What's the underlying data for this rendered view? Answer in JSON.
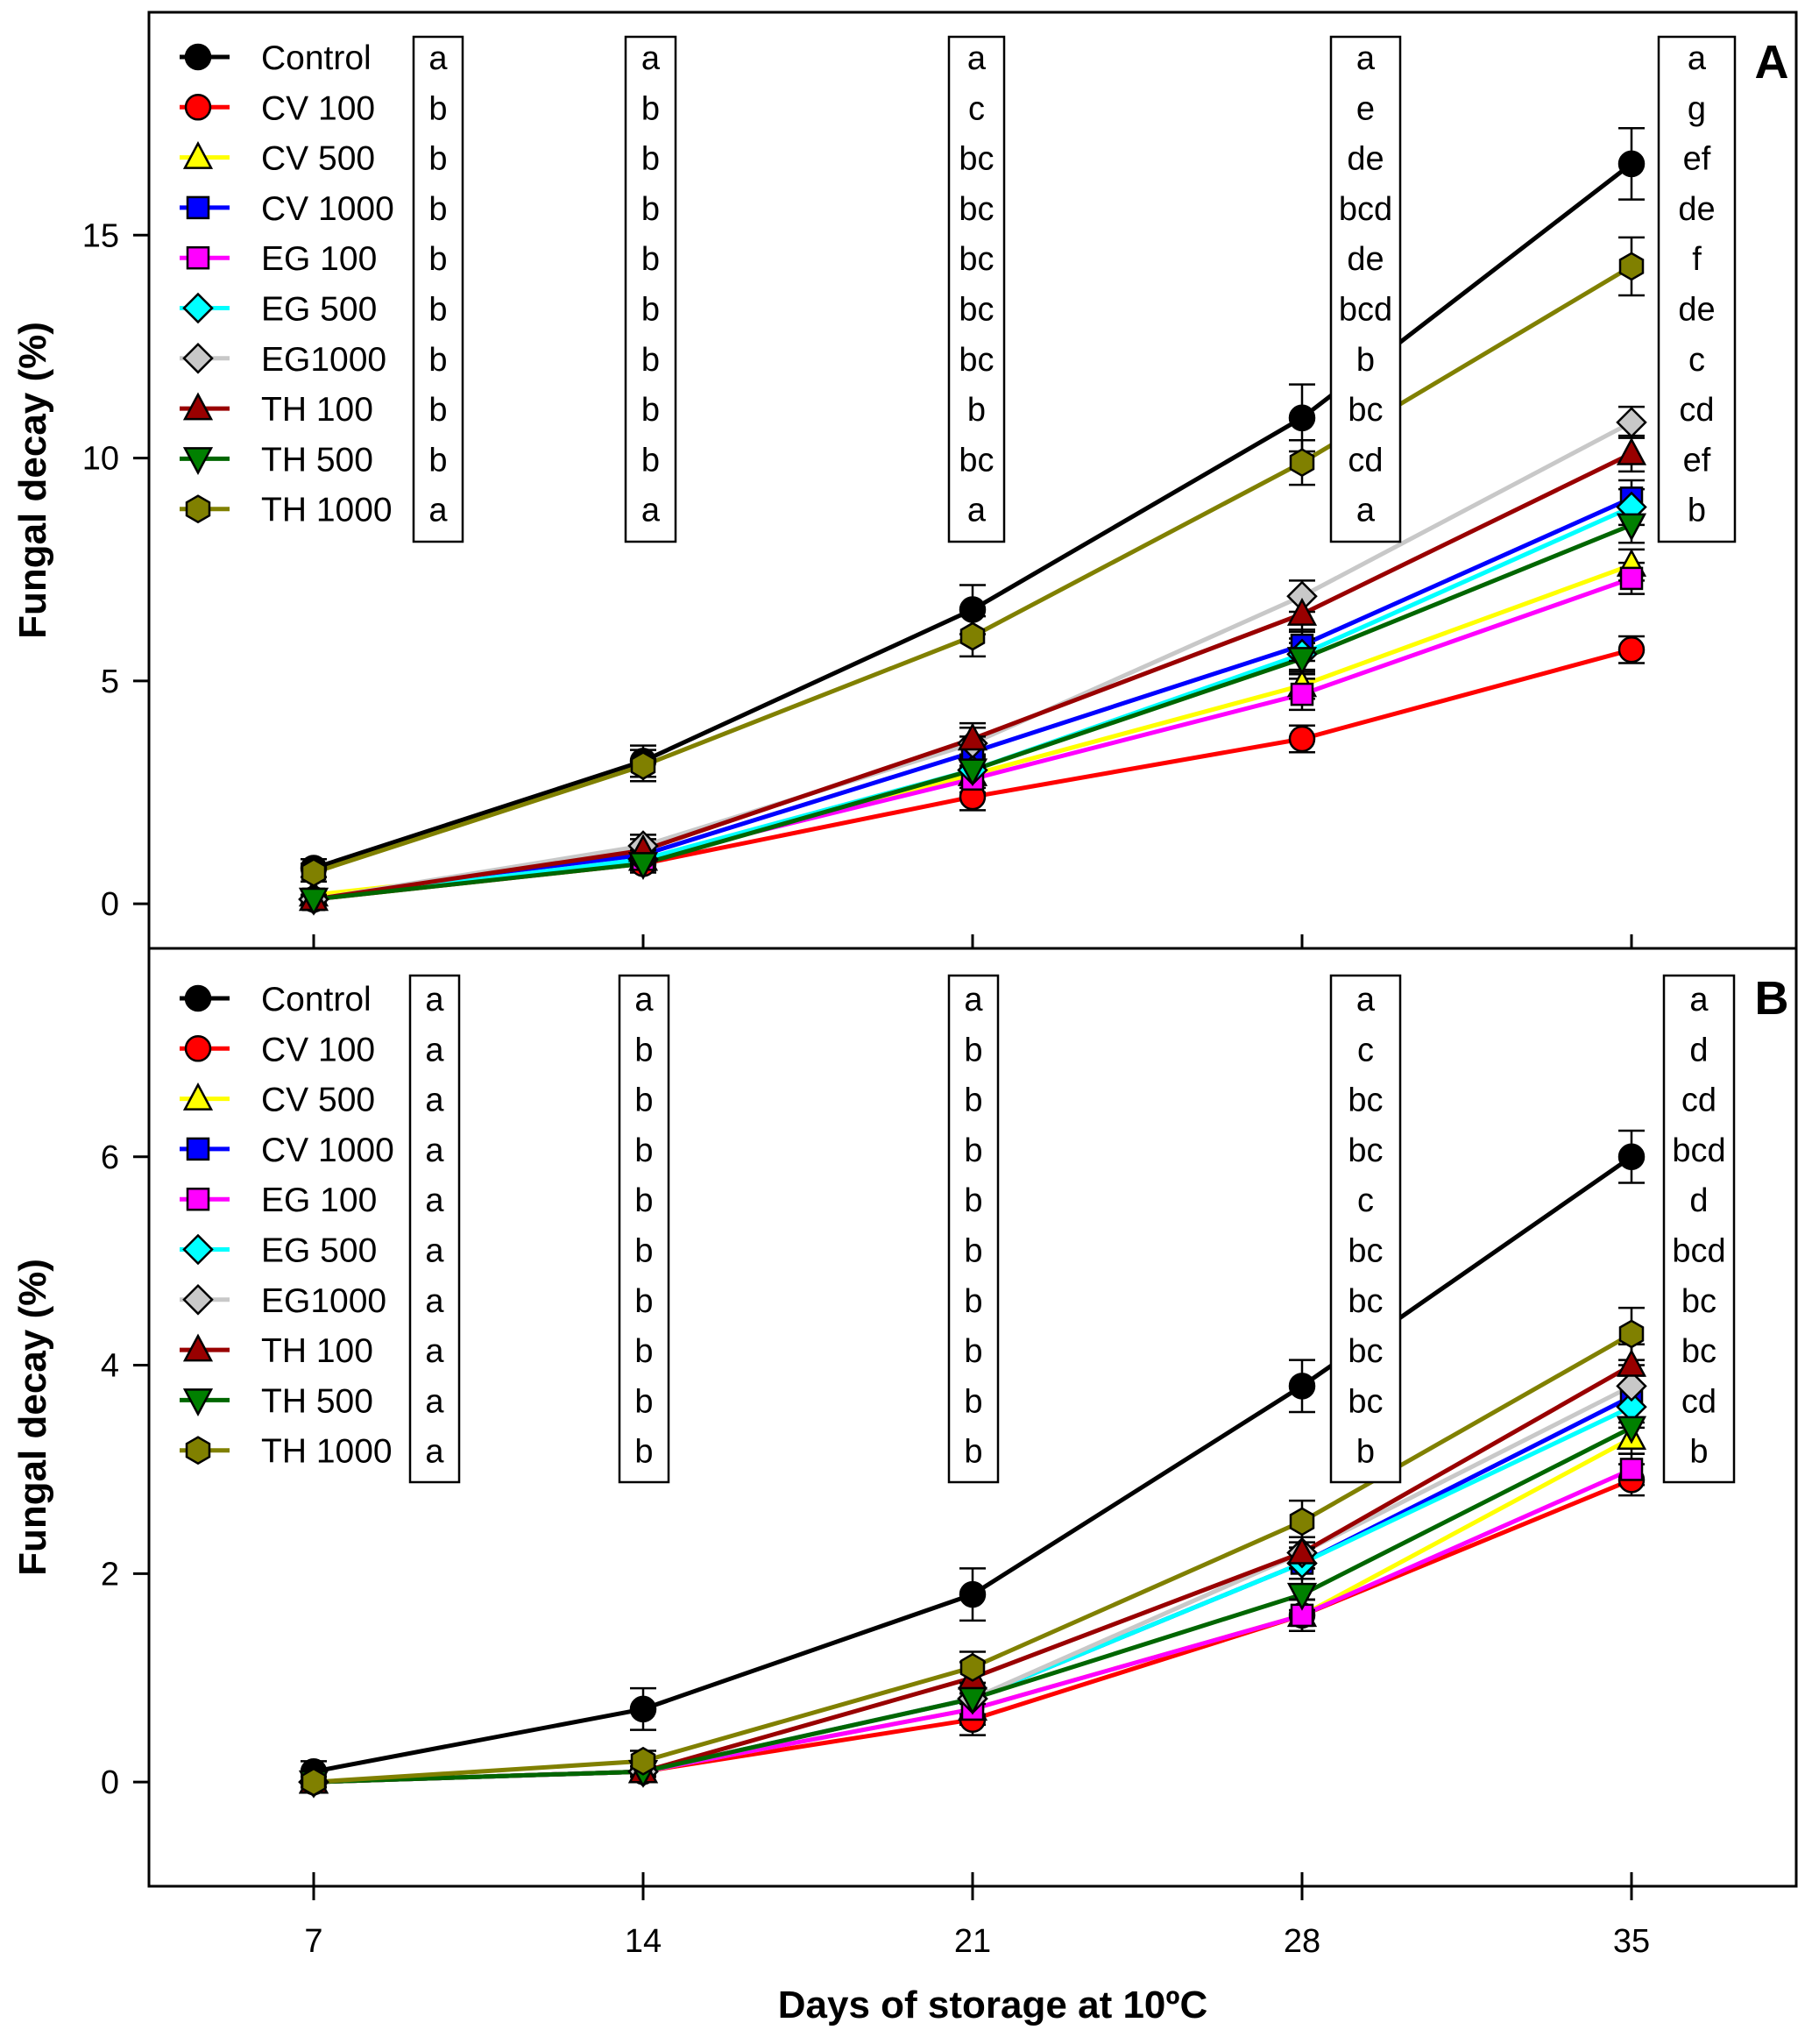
{
  "chart_data": {
    "type": "line",
    "xlabel": "Days of storage at 10ºC",
    "x": [
      7,
      14,
      21,
      28,
      35
    ],
    "x_tick_labels": [
      "7",
      "14",
      "21",
      "28",
      "35"
    ],
    "xlim": [
      3.5,
      38.5
    ],
    "legend_position": "top-left",
    "grid": false,
    "series_styles": [
      {
        "name": "Control",
        "line": "#000000",
        "fill": "#000000",
        "marker": "circle"
      },
      {
        "name": "CV 100",
        "line": "#ff0000",
        "fill": "#ff0000",
        "marker": "circle"
      },
      {
        "name": "CV 500",
        "line": "#ffff00",
        "fill": "#ffff00",
        "marker": "triangle-up"
      },
      {
        "name": "CV 1000",
        "line": "#0000ff",
        "fill": "#0000ff",
        "marker": "square"
      },
      {
        "name": "EG 100",
        "line": "#ff00ff",
        "fill": "#ff00ff",
        "marker": "square"
      },
      {
        "name": "EG 500",
        "line": "#00ffff",
        "fill": "#00ffff",
        "marker": "diamond"
      },
      {
        "name": "EG1000",
        "line": "#c8c8c8",
        "fill": "#c8c8c8",
        "marker": "diamond"
      },
      {
        "name": "TH 100",
        "line": "#990000",
        "fill": "#990000",
        "marker": "triangle-up"
      },
      {
        "name": "TH 500",
        "line": "#006600",
        "fill": "#008000",
        "marker": "triangle-down"
      },
      {
        "name": "TH 1000",
        "line": "#808000",
        "fill": "#808000",
        "marker": "hexagon"
      }
    ],
    "panels": [
      {
        "label": "A",
        "ylabel": "Fungal decay (%)",
        "ylim": [
          -1,
          20
        ],
        "yticks": [
          0,
          5,
          10,
          15
        ],
        "series": [
          {
            "name": "Control",
            "values": [
              0.8,
              3.2,
              6.6,
              10.9,
              16.6
            ],
            "errors": [
              0.2,
              0.35,
              0.55,
              0.75,
              0.8
            ]
          },
          {
            "name": "CV 100",
            "values": [
              0.1,
              0.9,
              2.4,
              3.7,
              5.7
            ],
            "errors": [
              0.1,
              0.15,
              0.3,
              0.3,
              0.3
            ]
          },
          {
            "name": "CV 500",
            "values": [
              0.2,
              1.0,
              2.9,
              4.9,
              7.6
            ],
            "errors": [
              0.1,
              0.2,
              0.3,
              0.3,
              0.35
            ]
          },
          {
            "name": "CV 1000",
            "values": [
              0.1,
              1.1,
              3.4,
              5.8,
              9.1
            ],
            "errors": [
              0.1,
              0.2,
              0.35,
              0.35,
              0.4
            ]
          },
          {
            "name": "EG 100",
            "values": [
              0.1,
              1.0,
              2.8,
              4.7,
              7.3
            ],
            "errors": [
              0.1,
              0.2,
              0.3,
              0.35,
              0.35
            ]
          },
          {
            "name": "EG 500",
            "values": [
              0.1,
              1.0,
              3.0,
              5.6,
              8.9
            ],
            "errors": [
              0.1,
              0.2,
              0.3,
              0.35,
              0.4
            ]
          },
          {
            "name": "EG1000",
            "values": [
              0.1,
              1.3,
              3.6,
              6.9,
              10.8
            ],
            "errors": [
              0.1,
              0.25,
              0.35,
              0.35,
              0.35
            ]
          },
          {
            "name": "TH 100",
            "values": [
              0.1,
              1.2,
              3.7,
              6.5,
              10.1
            ],
            "errors": [
              0.1,
              0.25,
              0.35,
              0.4,
              0.4
            ]
          },
          {
            "name": "TH 500",
            "values": [
              0.1,
              0.9,
              3.0,
              5.5,
              8.5
            ],
            "errors": [
              0.1,
              0.2,
              0.3,
              0.35,
              0.4
            ]
          },
          {
            "name": "TH 1000",
            "values": [
              0.7,
              3.1,
              6.0,
              9.9,
              14.3
            ],
            "errors": [
              0.2,
              0.35,
              0.45,
              0.5,
              0.65
            ]
          }
        ],
        "letter_columns": [
          [
            "a",
            "b",
            "b",
            "b",
            "b",
            "b",
            "b",
            "b",
            "b",
            "a"
          ],
          [
            "a",
            "b",
            "b",
            "b",
            "b",
            "b",
            "b",
            "b",
            "b",
            "a"
          ],
          [
            "a",
            "c",
            "bc",
            "bc",
            "bc",
            "bc",
            "bc",
            "b",
            "bc",
            "a"
          ],
          [
            "a",
            "e",
            "de",
            "bcd",
            "de",
            "bcd",
            "b",
            "bc",
            "cd",
            "a"
          ],
          [
            "a",
            "g",
            "ef",
            "de",
            "f",
            "de",
            "c",
            "cd",
            "ef",
            "b"
          ]
        ]
      },
      {
        "label": "B",
        "ylabel": "Fungal decay (%)",
        "ylim": [
          -1,
          8
        ],
        "yticks": [
          0,
          2,
          4,
          6
        ],
        "series": [
          {
            "name": "Control",
            "values": [
              0.1,
              0.7,
              1.8,
              3.8,
              6.0
            ],
            "errors": [
              0.1,
              0.2,
              0.25,
              0.25,
              0.25
            ]
          },
          {
            "name": "CV 100",
            "values": [
              0.0,
              0.1,
              0.6,
              1.6,
              2.9
            ],
            "errors": [
              0.05,
              0.05,
              0.15,
              0.15,
              0.15
            ]
          },
          {
            "name": "CV 500",
            "values": [
              0.0,
              0.1,
              0.7,
              1.6,
              3.3
            ],
            "errors": [
              0.05,
              0.05,
              0.15,
              0.15,
              0.15
            ]
          },
          {
            "name": "CV 1000",
            "values": [
              0.0,
              0.1,
              0.8,
              2.1,
              3.7
            ],
            "errors": [
              0.05,
              0.05,
              0.15,
              0.15,
              0.2
            ]
          },
          {
            "name": "EG 100",
            "values": [
              0.0,
              0.1,
              0.7,
              1.6,
              3.0
            ],
            "errors": [
              0.05,
              0.05,
              0.15,
              0.15,
              0.15
            ]
          },
          {
            "name": "EG 500",
            "values": [
              0.0,
              0.1,
              0.8,
              2.1,
              3.6
            ],
            "errors": [
              0.05,
              0.05,
              0.15,
              0.15,
              0.2
            ]
          },
          {
            "name": "EG1000",
            "values": [
              0.0,
              0.1,
              0.8,
              2.2,
              3.8
            ],
            "errors": [
              0.05,
              0.05,
              0.15,
              0.15,
              0.2
            ]
          },
          {
            "name": "TH 100",
            "values": [
              0.0,
              0.1,
              1.0,
              2.2,
              4.0
            ],
            "errors": [
              0.05,
              0.05,
              0.15,
              0.15,
              0.2
            ]
          },
          {
            "name": "TH 500",
            "values": [
              0.0,
              0.1,
              0.8,
              1.8,
              3.4
            ],
            "errors": [
              0.05,
              0.05,
              0.15,
              0.15,
              0.2
            ]
          },
          {
            "name": "TH 1000",
            "values": [
              0.0,
              0.2,
              1.1,
              2.5,
              4.3
            ],
            "errors": [
              0.05,
              0.1,
              0.15,
              0.2,
              0.25
            ]
          }
        ],
        "letter_columns": [
          [
            "a",
            "a",
            "a",
            "a",
            "a",
            "a",
            "a",
            "a",
            "a",
            "a"
          ],
          [
            "a",
            "b",
            "b",
            "b",
            "b",
            "b",
            "b",
            "b",
            "b",
            "b"
          ],
          [
            "a",
            "b",
            "b",
            "b",
            "b",
            "b",
            "b",
            "b",
            "b",
            "b"
          ],
          [
            "a",
            "c",
            "bc",
            "bc",
            "c",
            "bc",
            "bc",
            "bc",
            "bc",
            "b"
          ],
          [
            "a",
            "d",
            "cd",
            "bcd",
            "d",
            "bcd",
            "bc",
            "bc",
            "cd",
            "b"
          ]
        ]
      }
    ]
  }
}
